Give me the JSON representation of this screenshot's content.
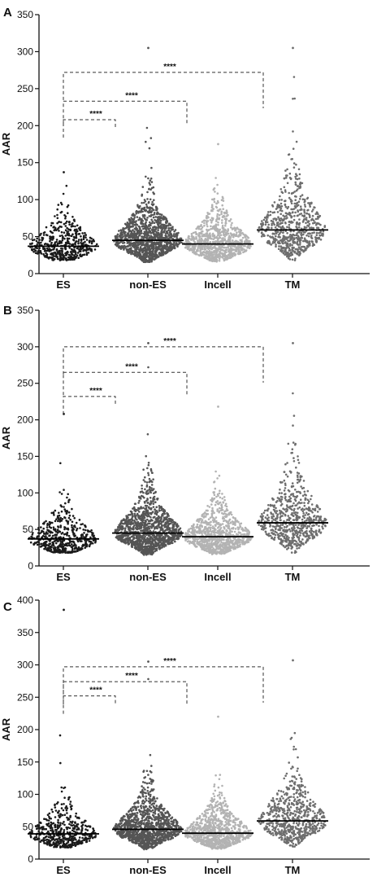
{
  "chart_data": [
    {
      "type": "scatter",
      "panel": "A",
      "ylabel": "AAR",
      "ylim": [
        0,
        350
      ],
      "yticks": [
        0,
        50,
        100,
        150,
        200,
        250,
        300,
        350
      ],
      "categories": [
        "ES",
        "non-ES",
        "Incell",
        "TM"
      ],
      "groups": [
        {
          "name": "ES",
          "color": "#1a1a1a",
          "median": 37,
          "min": 18,
          "max": 137,
          "n": 480
        },
        {
          "name": "non-ES",
          "color": "#555555",
          "median": 45,
          "min": 15,
          "max": 305,
          "n": 1200
        },
        {
          "name": "Incell",
          "color": "#b3b3b3",
          "median": 40,
          "min": 16,
          "max": 175,
          "n": 900
        },
        {
          "name": "TM",
          "color": "#6e6e6e",
          "median": 59,
          "min": 18,
          "max": 305,
          "n": 650
        }
      ],
      "comparisons": [
        {
          "from": "ES",
          "to": "non-ES",
          "y": 208,
          "label": "****"
        },
        {
          "from": "ES",
          "to": "Incell",
          "y": 233,
          "label": "****"
        },
        {
          "from": "ES",
          "to": "TM",
          "y": 272,
          "label": "****"
        }
      ]
    },
    {
      "type": "scatter",
      "panel": "B",
      "ylabel": "AAR",
      "ylim": [
        0,
        350
      ],
      "yticks": [
        0,
        50,
        100,
        150,
        200,
        250,
        300,
        350
      ],
      "categories": [
        "ES",
        "non-ES",
        "Incell",
        "TM"
      ],
      "groups": [
        {
          "name": "ES",
          "color": "#1a1a1a",
          "median": 37,
          "min": 18,
          "max": 208,
          "n": 480
        },
        {
          "name": "non-ES",
          "color": "#555555",
          "median": 45,
          "min": 15,
          "max": 305,
          "n": 1200
        },
        {
          "name": "Incell",
          "color": "#b3b3b3",
          "median": 40,
          "min": 16,
          "max": 218,
          "n": 900
        },
        {
          "name": "TM",
          "color": "#6e6e6e",
          "median": 59,
          "min": 18,
          "max": 305,
          "n": 650
        }
      ],
      "comparisons": [
        {
          "from": "ES",
          "to": "non-ES",
          "y": 232,
          "label": "****"
        },
        {
          "from": "ES",
          "to": "Incell",
          "y": 265,
          "label": "****"
        },
        {
          "from": "ES",
          "to": "TM",
          "y": 300,
          "label": "****"
        }
      ]
    },
    {
      "type": "scatter",
      "panel": "C",
      "ylabel": "AAR",
      "ylim": [
        0,
        400
      ],
      "yticks": [
        0,
        50,
        100,
        150,
        200,
        250,
        300,
        350,
        400
      ],
      "categories": [
        "ES",
        "non-ES",
        "Incell",
        "TM"
      ],
      "groups": [
        {
          "name": "ES",
          "color": "#1a1a1a",
          "median": 39,
          "min": 18,
          "max": 385,
          "n": 480
        },
        {
          "name": "non-ES",
          "color": "#555555",
          "median": 46,
          "min": 15,
          "max": 305,
          "n": 1200
        },
        {
          "name": "Incell",
          "color": "#b3b3b3",
          "median": 40,
          "min": 16,
          "max": 220,
          "n": 900
        },
        {
          "name": "TM",
          "color": "#6e6e6e",
          "median": 59,
          "min": 18,
          "max": 307,
          "n": 650
        }
      ],
      "comparisons": [
        {
          "from": "ES",
          "to": "non-ES",
          "y": 252,
          "label": "****"
        },
        {
          "from": "ES",
          "to": "Incell",
          "y": 274,
          "label": "****"
        },
        {
          "from": "ES",
          "to": "TM",
          "y": 297,
          "label": "****"
        }
      ]
    }
  ]
}
